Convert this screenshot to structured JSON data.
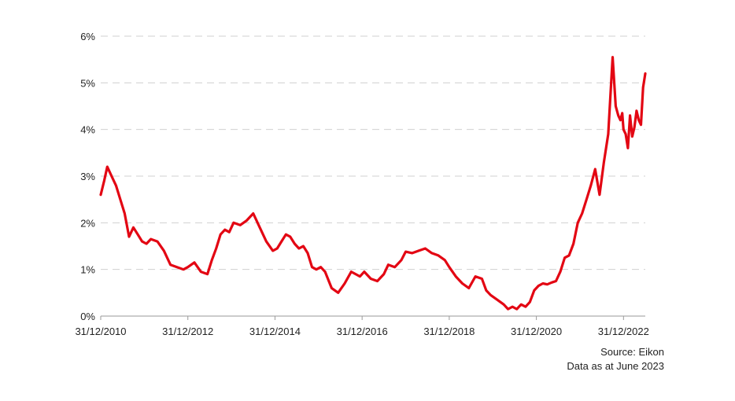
{
  "chart_data": {
    "type": "line",
    "title": "",
    "xlabel": "",
    "ylabel": "",
    "ylim": [
      0,
      6
    ],
    "y_ticks": [
      "0%",
      "1%",
      "2%",
      "3%",
      "4%",
      "5%",
      "6%"
    ],
    "y_tick_values": [
      0,
      1,
      2,
      3,
      4,
      5,
      6
    ],
    "x_ticks": [
      "31/12/2010",
      "31/12/2012",
      "31/12/2014",
      "31/12/2016",
      "31/12/2018",
      "31/12/2020",
      "31/12/2022"
    ],
    "x_tick_values": [
      2010.0,
      2012.0,
      2014.0,
      2016.0,
      2018.0,
      2020.0,
      2022.0
    ],
    "xlim": [
      2010.0,
      2022.5
    ],
    "grid": "horizontal dashed",
    "series_color": "#e30613",
    "series": [
      {
        "x": [
          2010.0,
          2010.08,
          2010.15,
          2010.25,
          2010.35,
          2010.45,
          2010.55,
          2010.65,
          2010.75,
          2010.85,
          2010.95,
          2011.05,
          2011.15,
          2011.3,
          2011.45,
          2011.6,
          2011.75,
          2011.9,
          2012.0,
          2012.15,
          2012.3,
          2012.45,
          2012.55,
          2012.65,
          2012.75,
          2012.85,
          2012.95,
          2013.05,
          2013.2,
          2013.35,
          2013.5,
          2013.65,
          2013.8,
          2013.95,
          2014.05,
          2014.15,
          2014.25,
          2014.35,
          2014.45,
          2014.55,
          2014.65,
          2014.75,
          2014.85,
          2014.95,
          2015.05,
          2015.15,
          2015.3,
          2015.45,
          2015.6,
          2015.75,
          2015.85,
          2015.95,
          2016.05,
          2016.2,
          2016.35,
          2016.5,
          2016.6,
          2016.75,
          2016.9,
          2017.0,
          2017.15,
          2017.3,
          2017.45,
          2017.6,
          2017.75,
          2017.9,
          2018.0,
          2018.15,
          2018.3,
          2018.45,
          2018.6,
          2018.75,
          2018.85,
          2018.95,
          2019.1,
          2019.25,
          2019.35,
          2019.45,
          2019.55,
          2019.65,
          2019.75,
          2019.85,
          2019.95,
          2020.05,
          2020.15,
          2020.25,
          2020.35,
          2020.45,
          2020.55,
          2020.65,
          2020.75,
          2020.85,
          2020.95,
          2021.05,
          2021.15,
          2021.25,
          2021.35,
          2021.45,
          2021.55,
          2021.65,
          2021.75,
          2021.82,
          2021.88,
          2021.93,
          2021.97,
          2022.0,
          2022.05,
          2022.1,
          2022.15,
          2022.2,
          2022.25,
          2022.3,
          2022.35,
          2022.4,
          2022.45,
          2022.5
        ],
        "y": [
          2.6,
          2.9,
          3.2,
          3.0,
          2.8,
          2.5,
          2.2,
          1.7,
          1.9,
          1.75,
          1.6,
          1.55,
          1.65,
          1.6,
          1.4,
          1.1,
          1.05,
          1.0,
          1.05,
          1.15,
          0.95,
          0.9,
          1.2,
          1.45,
          1.75,
          1.85,
          1.8,
          2.0,
          1.95,
          2.05,
          2.2,
          1.9,
          1.6,
          1.4,
          1.45,
          1.6,
          1.75,
          1.7,
          1.55,
          1.45,
          1.5,
          1.35,
          1.05,
          1.0,
          1.05,
          0.95,
          0.6,
          0.5,
          0.7,
          0.95,
          0.9,
          0.85,
          0.95,
          0.8,
          0.75,
          0.9,
          1.1,
          1.05,
          1.2,
          1.38,
          1.35,
          1.4,
          1.45,
          1.35,
          1.3,
          1.2,
          1.05,
          0.85,
          0.7,
          0.6,
          0.85,
          0.8,
          0.55,
          0.45,
          0.35,
          0.25,
          0.15,
          0.2,
          0.15,
          0.25,
          0.2,
          0.3,
          0.55,
          0.65,
          0.7,
          0.68,
          0.72,
          0.75,
          0.95,
          1.25,
          1.3,
          1.55,
          2.0,
          2.2,
          2.5,
          2.8,
          3.15,
          2.6,
          3.3,
          3.9,
          5.55,
          4.5,
          4.3,
          4.2,
          4.35,
          4.0,
          3.9,
          3.6,
          4.3,
          3.85,
          4.05,
          4.4,
          4.2,
          4.1,
          4.9,
          5.2
        ]
      }
    ]
  },
  "source_note": {
    "line1": "Source: Eikon",
    "line2": "Data as at June 2023"
  }
}
